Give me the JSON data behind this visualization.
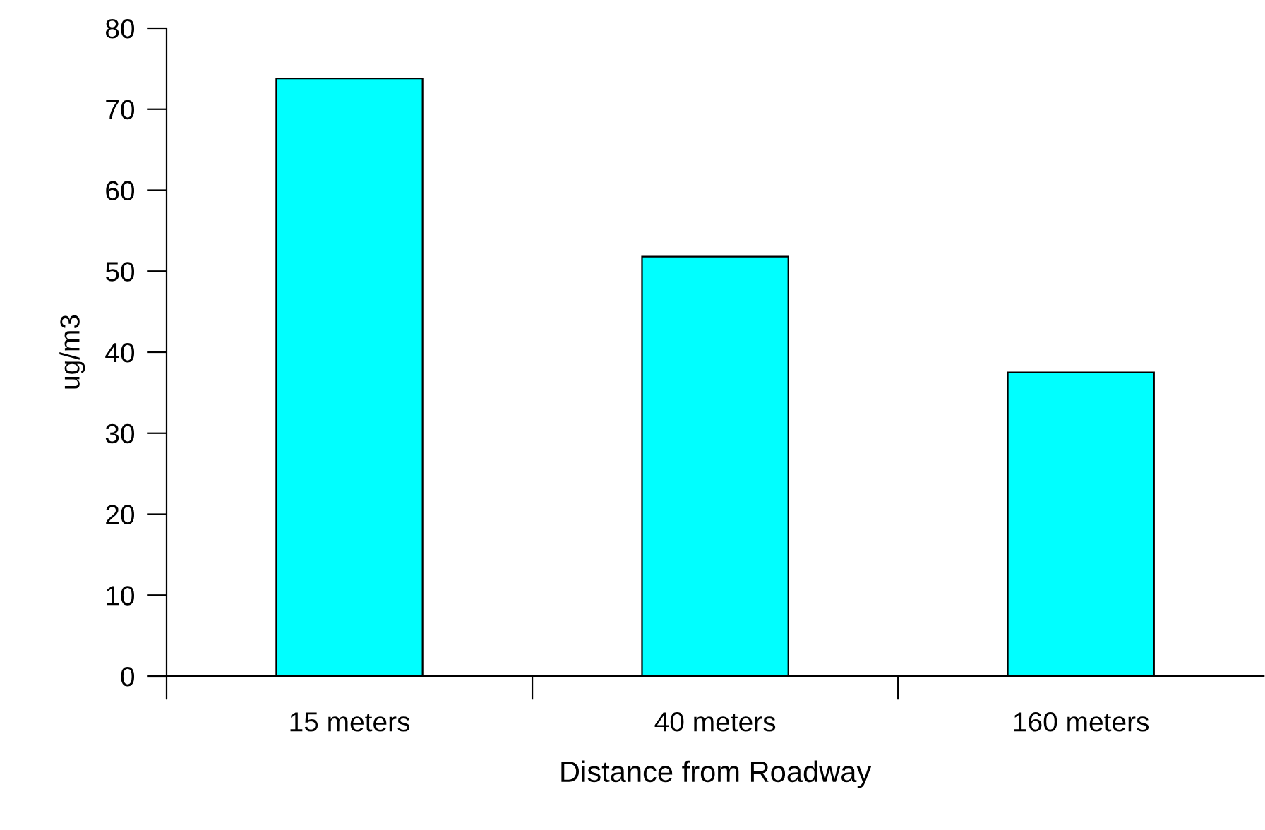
{
  "chart_data": {
    "type": "bar",
    "xlabel": "Distance from Roadway",
    "ylabel": "ug/m3",
    "categories": [
      "15 meters",
      "40 meters",
      "160 meters"
    ],
    "values": [
      73.8,
      51.8,
      37.5
    ],
    "color": "#00ffff",
    "ylim": [
      0,
      80
    ],
    "yticks": [
      0,
      10,
      20,
      30,
      40,
      50,
      60,
      70,
      80
    ],
    "grid": false,
    "legend": false
  }
}
